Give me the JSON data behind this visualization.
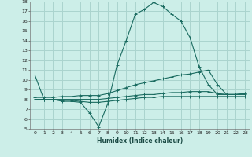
{
  "xlabel": "Humidex (Indice chaleur)",
  "bg_color": "#cceee8",
  "grid_color": "#aad4ce",
  "line_color": "#1a6b60",
  "xlim": [
    -0.5,
    23.5
  ],
  "ylim": [
    5,
    18
  ],
  "xticks": [
    0,
    1,
    2,
    3,
    4,
    5,
    6,
    7,
    8,
    9,
    10,
    11,
    12,
    13,
    14,
    15,
    16,
    17,
    18,
    19,
    20,
    21,
    22,
    23
  ],
  "yticks": [
    5,
    6,
    7,
    8,
    9,
    10,
    11,
    12,
    13,
    14,
    15,
    16,
    17,
    18
  ],
  "series": [
    [
      10.5,
      8.0,
      8.0,
      7.8,
      7.8,
      7.7,
      6.6,
      5.2,
      7.6,
      11.5,
      14.0,
      16.7,
      17.2,
      17.9,
      17.5,
      16.7,
      16.0,
      14.3,
      11.3,
      9.5,
      8.5,
      8.5,
      8.5,
      8.6
    ],
    [
      8.2,
      8.2,
      8.2,
      8.3,
      8.3,
      8.4,
      8.4,
      8.4,
      8.6,
      8.9,
      9.2,
      9.5,
      9.7,
      9.9,
      10.1,
      10.3,
      10.5,
      10.6,
      10.8,
      11.0,
      9.5,
      8.5,
      8.5,
      8.6
    ],
    [
      8.0,
      8.0,
      8.0,
      8.0,
      8.0,
      8.0,
      8.0,
      8.0,
      8.1,
      8.2,
      8.3,
      8.4,
      8.5,
      8.5,
      8.6,
      8.7,
      8.7,
      8.8,
      8.8,
      8.8,
      8.6,
      8.5,
      8.5,
      8.5
    ],
    [
      8.0,
      8.0,
      8.0,
      7.9,
      7.9,
      7.8,
      7.7,
      7.7,
      7.8,
      7.9,
      8.0,
      8.1,
      8.2,
      8.2,
      8.3,
      8.3,
      8.3,
      8.3,
      8.3,
      8.3,
      8.3,
      8.3,
      8.3,
      8.3
    ]
  ]
}
